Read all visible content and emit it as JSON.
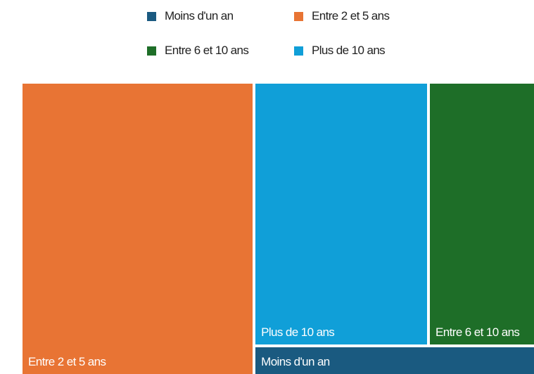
{
  "chart_data": {
    "type": "treemap",
    "categories": [
      "Moins d'un an",
      "Entre 2 et 5 ans",
      "Entre 6 et 10 ans",
      "Plus de 10 ans"
    ],
    "values": [
      5,
      45,
      19,
      31
    ],
    "colors": [
      "#1a5a80",
      "#e87434",
      "#1e6e28",
      "#109fd8"
    ]
  }
}
